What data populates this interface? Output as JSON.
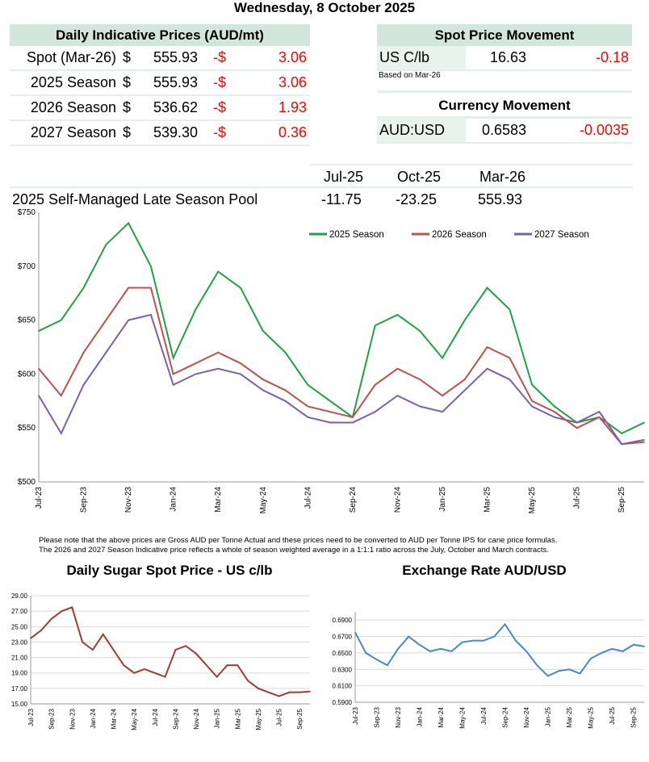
{
  "title": "Wednesday, 8 October 2025",
  "prices": {
    "header": "Daily Indicative Prices (AUD/mt)",
    "rows": [
      {
        "label": "Spot (Mar-26)",
        "cur": "$",
        "value": "555.93",
        "sign": "-$",
        "change": "3.06"
      },
      {
        "label": "2025 Season",
        "cur": "$",
        "value": "555.93",
        "sign": "-$",
        "change": "3.06"
      },
      {
        "label": "2026 Season",
        "cur": "$",
        "value": "536.62",
        "sign": "-$",
        "change": "1.93"
      },
      {
        "label": "2027 Season",
        "cur": "$",
        "value": "539.30",
        "sign": "-$",
        "change": "0.36"
      }
    ]
  },
  "spot": {
    "header": "Spot Price Movement",
    "label": "US C/lb",
    "value": "16.63",
    "change": "-0.18",
    "note": "Based on Mar-26"
  },
  "currency": {
    "header": "Currency Movement",
    "label": "AUD:USD",
    "value": "0.6583",
    "change": "-0.0035"
  },
  "pool": {
    "cols": [
      "Jul-25",
      "Oct-25",
      "Mar-26"
    ],
    "label": "2025 Self-Managed Late Season Pool",
    "values": [
      "-11.75",
      "-23.25",
      "555.93"
    ]
  },
  "notes": [
    "Please note that the above prices are Gross AUD per Tonne Actual and these prices need to be converted to AUD per Tonne IPS for cane price formulas.",
    "The 2026 and 2027 Season Indicative price reflects a whole of season weighted average in a 1:1:1 ratio across the July, October and March contracts."
  ],
  "chart_data": [
    {
      "type": "line",
      "title": "",
      "ylim": [
        500,
        750
      ],
      "yticks": [
        "$500",
        "$550",
        "$600",
        "$650",
        "$700",
        "$750"
      ],
      "ytick_values": [
        500,
        550,
        600,
        650,
        700,
        750
      ],
      "xticks": [
        "Jul-23",
        "Sep-23",
        "Nov-23",
        "Jan-24",
        "Mar-24",
        "May-24",
        "Jul-24",
        "Sep-24",
        "Nov-24",
        "Jan-25",
        "Mar-25",
        "May-25",
        "Jul-25",
        "Sep-25"
      ],
      "x": [
        "Jul-23",
        "Aug-23",
        "Sep-23",
        "Oct-23",
        "Nov-23",
        "Dec-23",
        "Jan-24",
        "Feb-24",
        "Mar-24",
        "Apr-24",
        "May-24",
        "Jun-24",
        "Jul-24",
        "Aug-24",
        "Sep-24",
        "Oct-24",
        "Nov-24",
        "Dec-24",
        "Jan-25",
        "Feb-25",
        "Mar-25",
        "Apr-25",
        "May-25",
        "Jun-25",
        "Jul-25",
        "Aug-25",
        "Sep-25",
        "Oct-25"
      ],
      "legend": "top-right",
      "series": [
        {
          "name": "2025 Season",
          "color": "#1fa244",
          "values": [
            640,
            650,
            680,
            720,
            740,
            700,
            615,
            660,
            695,
            680,
            640,
            620,
            590,
            575,
            560,
            645,
            655,
            640,
            615,
            650,
            680,
            660,
            590,
            570,
            555,
            560,
            545,
            555
          ]
        },
        {
          "name": "2026 Season",
          "color": "#c0504d",
          "values": [
            605,
            580,
            620,
            650,
            680,
            680,
            600,
            610,
            620,
            610,
            595,
            585,
            570,
            565,
            560,
            590,
            605,
            595,
            580,
            595,
            625,
            615,
            575,
            565,
            550,
            560,
            535,
            537
          ]
        },
        {
          "name": "2027 Season",
          "color": "#7d5fa6",
          "values": [
            580,
            545,
            590,
            620,
            650,
            655,
            590,
            600,
            605,
            600,
            585,
            575,
            560,
            555,
            555,
            565,
            580,
            570,
            565,
            585,
            605,
            595,
            570,
            560,
            555,
            565,
            535,
            539
          ]
        }
      ]
    },
    {
      "type": "line",
      "title": "Daily Sugar Spot Price - US c/lb",
      "ylim": [
        15,
        29
      ],
      "yticks": [
        "15.00",
        "17.00",
        "19.00",
        "21.00",
        "23.00",
        "25.00",
        "27.00",
        "29.00"
      ],
      "ytick_values": [
        15,
        17,
        19,
        21,
        23,
        25,
        27,
        29
      ],
      "xticks": [
        "Jul-23",
        "Sep-23",
        "Nov-23",
        "Jan-24",
        "Mar-24",
        "May-24",
        "Jul-24",
        "Sep-24",
        "Nov-24",
        "Jan-25",
        "Mar-25",
        "May-25",
        "Jul-25",
        "Sep-25"
      ],
      "series": [
        {
          "color": "#a33a32",
          "values": [
            23.5,
            24.5,
            26,
            27,
            27.5,
            23,
            22,
            24,
            22,
            20,
            19,
            19.5,
            19,
            18.5,
            22,
            22.5,
            21.5,
            20,
            18.5,
            20,
            20,
            18,
            17,
            16.5,
            16,
            16.5,
            16.5,
            16.6
          ]
        }
      ]
    },
    {
      "type": "line",
      "title": "Exchange Rate AUD/USD",
      "ylim": [
        0.59,
        0.7
      ],
      "yticks": [
        "0.5900",
        "0.6100",
        "0.6300",
        "0.6500",
        "0.6700",
        "0.6900"
      ],
      "ytick_values": [
        0.59,
        0.61,
        0.63,
        0.65,
        0.67,
        0.69
      ],
      "xticks": [
        "Jul-23",
        "Sep-23",
        "Nov-23",
        "Jan-24",
        "Mar-24",
        "May-24",
        "Jul-24",
        "Sep-24",
        "Nov-24",
        "Jan-25",
        "Mar-25",
        "May-25",
        "Jul-25",
        "Sep-25"
      ],
      "series": [
        {
          "color": "#4a86d0",
          "values": [
            0.675,
            0.65,
            0.642,
            0.635,
            0.655,
            0.67,
            0.66,
            0.652,
            0.655,
            0.652,
            0.663,
            0.665,
            0.665,
            0.67,
            0.685,
            0.665,
            0.652,
            0.635,
            0.622,
            0.628,
            0.63,
            0.625,
            0.643,
            0.65,
            0.655,
            0.652,
            0.66,
            0.658
          ]
        }
      ]
    }
  ]
}
